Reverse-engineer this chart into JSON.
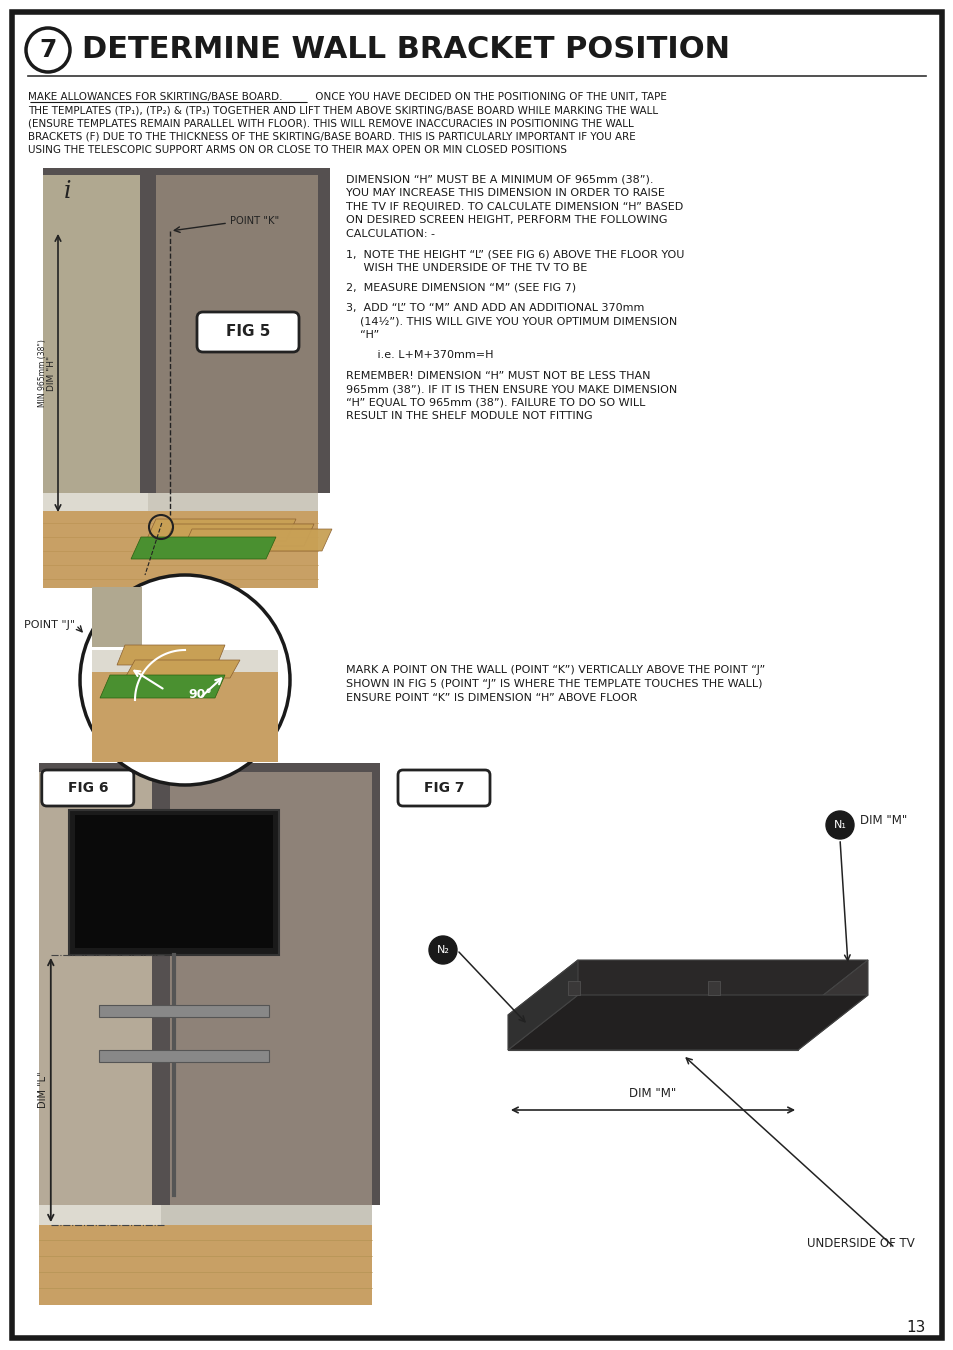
{
  "page_border_color": "#1a1a1a",
  "background_color": "#ffffff",
  "title_number": "7",
  "title_text": "DETERMINE WALL BRACKET POSITION",
  "title_fontsize": 22,
  "title_color": "#1a1a1a",
  "body_text_color": "#1a1a1a",
  "body_fontsize": 7.5,
  "intro_underline": "MAKE ALLOWANCES FOR SKIRTING/BASE BOARD.",
  "intro_rest": " ONCE YOU HAVE DECIDED ON THE POSITIONING OF THE UNIT, TAPE THE TEMPLATES (TP₁), (TP₂) & (TP₃) TOGETHER AND LIFT THEM ABOVE SKIRTING/BASE BOARD WHILE MARKING THE WALL (ENSURE TEMPLATES REMAIN PARALLEL WITH FLOOR). THIS WILL REMOVE INACCURACIES IN POSITIONING THE WALL BRACKETS (F) DUE TO THE THICKNESS OF THE SKIRTING/BASE BOARD. THIS IS PARTICULARLY IMPORTANT IF YOU ARE USING THE TELESCOPIC SUPPORT ARMS ON OR CLOSE TO THEIR MAX OPEN OR MIN CLOSED POSITIONS",
  "intro_lines": [
    "MAKE ALLOWANCES FOR SKIRTING/BASE BOARD. ONCE YOU HAVE DECIDED ON THE POSITIONING OF THE UNIT, TAPE",
    "THE TEMPLATES (TP₁), (TP₂) & (TP₃) TOGETHER AND LIFT THEM ABOVE SKIRTING/BASE BOARD WHILE MARKING THE WALL",
    "(ENSURE TEMPLATES REMAIN PARALLEL WITH FLOOR). THIS WILL REMOVE INACCURACIES IN POSITIONING THE WALL",
    "BRACKETS (F) DUE TO THE THICKNESS OF THE SKIRTING/BASE BOARD. THIS IS PARTICULARLY IMPORTANT IF YOU ARE",
    "USING THE TELESCOPIC SUPPORT ARMS ON OR CLOSE TO THEIR MAX OPEN OR MIN CLOSED POSITIONS"
  ],
  "right_block_lines": [
    "DIMENSION “H” MUST BE A MINIMUM OF 965mm (38”).",
    "YOU MAY INCREASE THIS DIMENSION IN ORDER TO RAISE",
    "THE TV IF REQUIRED. TO CALCULATE DIMENSION “H” BASED",
    "ON DESIRED SCREEN HEIGHT, PERFORM THE FOLLOWING",
    "CALCULATION: -",
    "",
    "1,  NOTE THE HEIGHT “L” (SEE FIG 6) ABOVE THE FLOOR YOU",
    "     WISH THE UNDERSIDE OF THE TV TO BE",
    "",
    "2,  MEASURE DIMENSION “M” (SEE FIG 7)",
    "",
    "3,  ADD “L” TO “M” AND ADD AN ADDITIONAL 370mm",
    "    (14½”). THIS WILL GIVE YOU YOUR OPTIMUM DIMENSION",
    "    “H”",
    "",
    "         i.e. L+M+370mm=H",
    "",
    "REMEMBER! DIMENSION “H” MUST NOT BE LESS THAN",
    "965mm (38”). IF IT IS THEN ENSURE YOU MAKE DIMENSION",
    "“H” EQUAL TO 965mm (38”). FAILURE TO DO SO WILL",
    "RESULT IN THE SHELF MODULE NOT FITTING"
  ],
  "bottom_text_lines": [
    "MARK A POINT ON THE WALL (POINT “K”) VERTICALLY ABOVE THE POINT “J”",
    "SHOWN IN FIG 5 (POINT “J” IS WHERE THE TEMPLATE TOUCHES THE WALL)",
    "ENSURE POINT “K” IS DIMENSION “H” ABOVE FLOOR"
  ],
  "page_number": "13",
  "wall_color_light": "#b0a898",
  "wall_color_mid": "#9a8e7e",
  "wall_color_dark": "#7a6e6a",
  "wall_corner_dark": "#555050",
  "floor_color": "#c8a065",
  "baseboard_color": "#dddad0",
  "template_wood": "#c8a055",
  "template_green": "#5a9840",
  "shelf_dark": "#2a2828",
  "fig_label_color": "#222222"
}
